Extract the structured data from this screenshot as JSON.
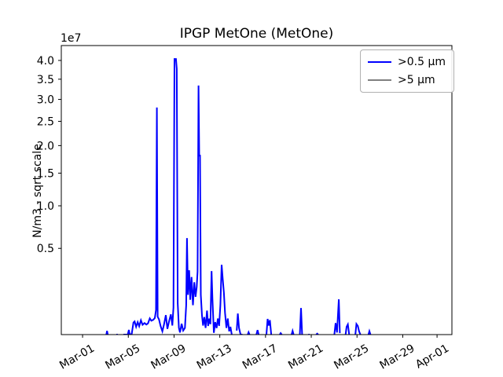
{
  "chart_data": {
    "type": "line",
    "title": "IPGP MetOne (MetOne)",
    "xlabel": "",
    "ylabel": "N/m3 - sqrt scale",
    "yscale": "sqrt",
    "offset_text": "1e7",
    "grid": false,
    "legend_position": "upper right",
    "ylim": [
      130000,
      44200000
    ],
    "xlim_days": [
      -1.86,
      32.3
    ],
    "yticks": {
      "values": [
        5000000,
        10000000,
        15000000,
        20000000,
        25000000,
        30000000,
        35000000,
        40000000
      ],
      "labels": [
        "0.5",
        "1.0",
        "1.5",
        "2.0",
        "2.5",
        "3.0",
        "3.5",
        "4.0"
      ]
    },
    "xticks": {
      "days": [
        0,
        4,
        8,
        12,
        16,
        20,
        24,
        28,
        31
      ],
      "labels": [
        "Mar-01",
        "Mar-05",
        "Mar-09",
        "Mar-13",
        "Mar-17",
        "Mar-21",
        "Mar-25",
        "Mar-29",
        "Apr-01"
      ]
    },
    "legend": [
      {
        "label": ">0.5 μm",
        "color": "#0000ff"
      },
      {
        "label": ">5 μm",
        "color": "#808080"
      }
    ],
    "series": [
      {
        "name": ">0.5 μm",
        "color": "#0000ff",
        "x_unit": "days_since_Mar-01",
        "y_unit": "N/m3",
        "segments": [
          [
            [
              2.08,
              100000
            ],
            [
              2.14,
              195000
            ],
            [
              2.2,
              100000
            ]
          ],
          [
            [
              2.95,
              100000
            ],
            [
              3.08,
              100000
            ]
          ],
          [
            [
              3.57,
              100000
            ],
            [
              3.75,
              100000
            ],
            [
              3.95,
              115000
            ],
            [
              4.05,
              215000
            ],
            [
              4.12,
              120000
            ],
            [
              4.3,
              140000
            ],
            [
              4.45,
              390000
            ],
            [
              4.55,
              420000
            ],
            [
              4.68,
              280000
            ],
            [
              4.82,
              400000
            ],
            [
              4.95,
              295000
            ],
            [
              5.1,
              450000
            ],
            [
              5.25,
              330000
            ],
            [
              5.42,
              375000
            ],
            [
              5.58,
              335000
            ],
            [
              5.72,
              365000
            ],
            [
              5.88,
              510000
            ],
            [
              6.02,
              440000
            ],
            [
              6.18,
              465000
            ],
            [
              6.32,
              520000
            ],
            [
              6.42,
              800000
            ],
            [
              6.5,
              28100000
            ],
            [
              6.57,
              560000
            ],
            [
              6.68,
              480000
            ],
            [
              6.82,
              300000
            ],
            [
              6.98,
              185000
            ],
            [
              7.12,
              340000
            ],
            [
              7.28,
              615000
            ],
            [
              7.42,
              235000
            ],
            [
              7.58,
              440000
            ],
            [
              7.72,
              640000
            ],
            [
              7.85,
              310000
            ],
            [
              7.95,
              900000
            ],
            [
              8.04,
              40400000
            ],
            [
              8.17,
              40400000
            ],
            [
              8.24,
              37700000
            ],
            [
              8.32,
              1100000
            ],
            [
              8.42,
              260000
            ],
            [
              8.52,
              165000
            ],
            [
              8.66,
              355000
            ],
            [
              8.8,
              200000
            ],
            [
              8.95,
              255000
            ],
            [
              9.06,
              1000000
            ],
            [
              9.13,
              6050000
            ],
            [
              9.22,
              1500000
            ],
            [
              9.32,
              3100000
            ],
            [
              9.42,
              1250000
            ],
            [
              9.53,
              2600000
            ],
            [
              9.65,
              1000000
            ],
            [
              9.77,
              2250000
            ],
            [
              9.88,
              1400000
            ],
            [
              9.98,
              1950000
            ],
            [
              10.06,
              3000000
            ],
            [
              10.14,
              33400000
            ],
            [
              10.2,
              18100000
            ],
            [
              10.27,
              18100000
            ],
            [
              10.34,
              1500000
            ],
            [
              10.44,
              600000
            ],
            [
              10.54,
              310000
            ],
            [
              10.64,
              550000
            ],
            [
              10.76,
              255000
            ],
            [
              10.88,
              780000
            ],
            [
              10.98,
              300000
            ],
            [
              11.08,
              500000
            ],
            [
              11.18,
              345000
            ],
            [
              11.28,
              3030000
            ],
            [
              11.36,
              1300000
            ],
            [
              11.48,
              160000
            ],
            [
              11.6,
              400000
            ],
            [
              11.72,
              250000
            ],
            [
              11.83,
              505000
            ],
            [
              11.94,
              300000
            ],
            [
              12.05,
              1000000
            ],
            [
              12.16,
              3530000
            ],
            [
              12.26,
              2460000
            ],
            [
              12.36,
              1600000
            ],
            [
              12.46,
              700000
            ],
            [
              12.58,
              255000
            ],
            [
              12.7,
              505000
            ],
            [
              12.82,
              185000
            ],
            [
              12.93,
              280000
            ],
            [
              13.05,
              115000
            ]
          ],
          [
            [
              13.48,
              200000
            ],
            [
              13.58,
              670000
            ],
            [
              13.68,
              255000
            ],
            [
              13.82,
              125000
            ],
            [
              13.98,
              100000
            ]
          ],
          [
            [
              14.44,
              100000
            ],
            [
              14.52,
              170000
            ],
            [
              14.6,
              100000
            ]
          ],
          [
            [
              15.2,
              100000
            ],
            [
              15.3,
              210000
            ],
            [
              15.4,
              100000
            ]
          ],
          [
            [
              16.08,
              125000
            ],
            [
              16.18,
              490000
            ],
            [
              16.28,
              310000
            ],
            [
              16.38,
              455000
            ],
            [
              16.5,
              130000
            ]
          ],
          [
            [
              17.24,
              100000
            ],
            [
              17.32,
              155000
            ],
            [
              17.42,
              100000
            ]
          ],
          [
            [
              18.28,
              100000
            ],
            [
              18.37,
              195000
            ],
            [
              18.46,
              100000
            ]
          ],
          [
            [
              19.0,
              125000
            ],
            [
              19.1,
              880000
            ],
            [
              19.2,
              135000
            ]
          ],
          [
            [
              19.74,
              100000
            ],
            [
              19.86,
              100000
            ]
          ],
          [
            [
              20.44,
              100000
            ],
            [
              20.52,
              145000
            ],
            [
              20.6,
              100000
            ]
          ],
          [
            [
              22.02,
              125000
            ],
            [
              22.13,
              375000
            ],
            [
              22.25,
              165000
            ],
            [
              22.41,
              1270000
            ],
            [
              22.5,
              155000
            ]
          ],
          [
            [
              23.0,
              120000
            ],
            [
              23.09,
              280000
            ],
            [
              23.2,
              340000
            ],
            [
              23.32,
              115000
            ]
          ],
          [
            [
              23.86,
              135000
            ],
            [
              23.95,
              350000
            ],
            [
              24.07,
              300000
            ],
            [
              24.18,
              185000
            ],
            [
              24.3,
              115000
            ]
          ],
          [
            [
              25.0,
              100000
            ],
            [
              25.08,
              190000
            ],
            [
              25.18,
              100000
            ]
          ]
        ]
      },
      {
        "name": ">5 μm",
        "color": "#808080",
        "x_unit": "days_since_Mar-01",
        "y_unit": "N/m3",
        "segments": []
      }
    ],
    "colors": {
      "axes": "#000000",
      "background": "#ffffff",
      "legend_border": "#b0b0b0"
    }
  }
}
